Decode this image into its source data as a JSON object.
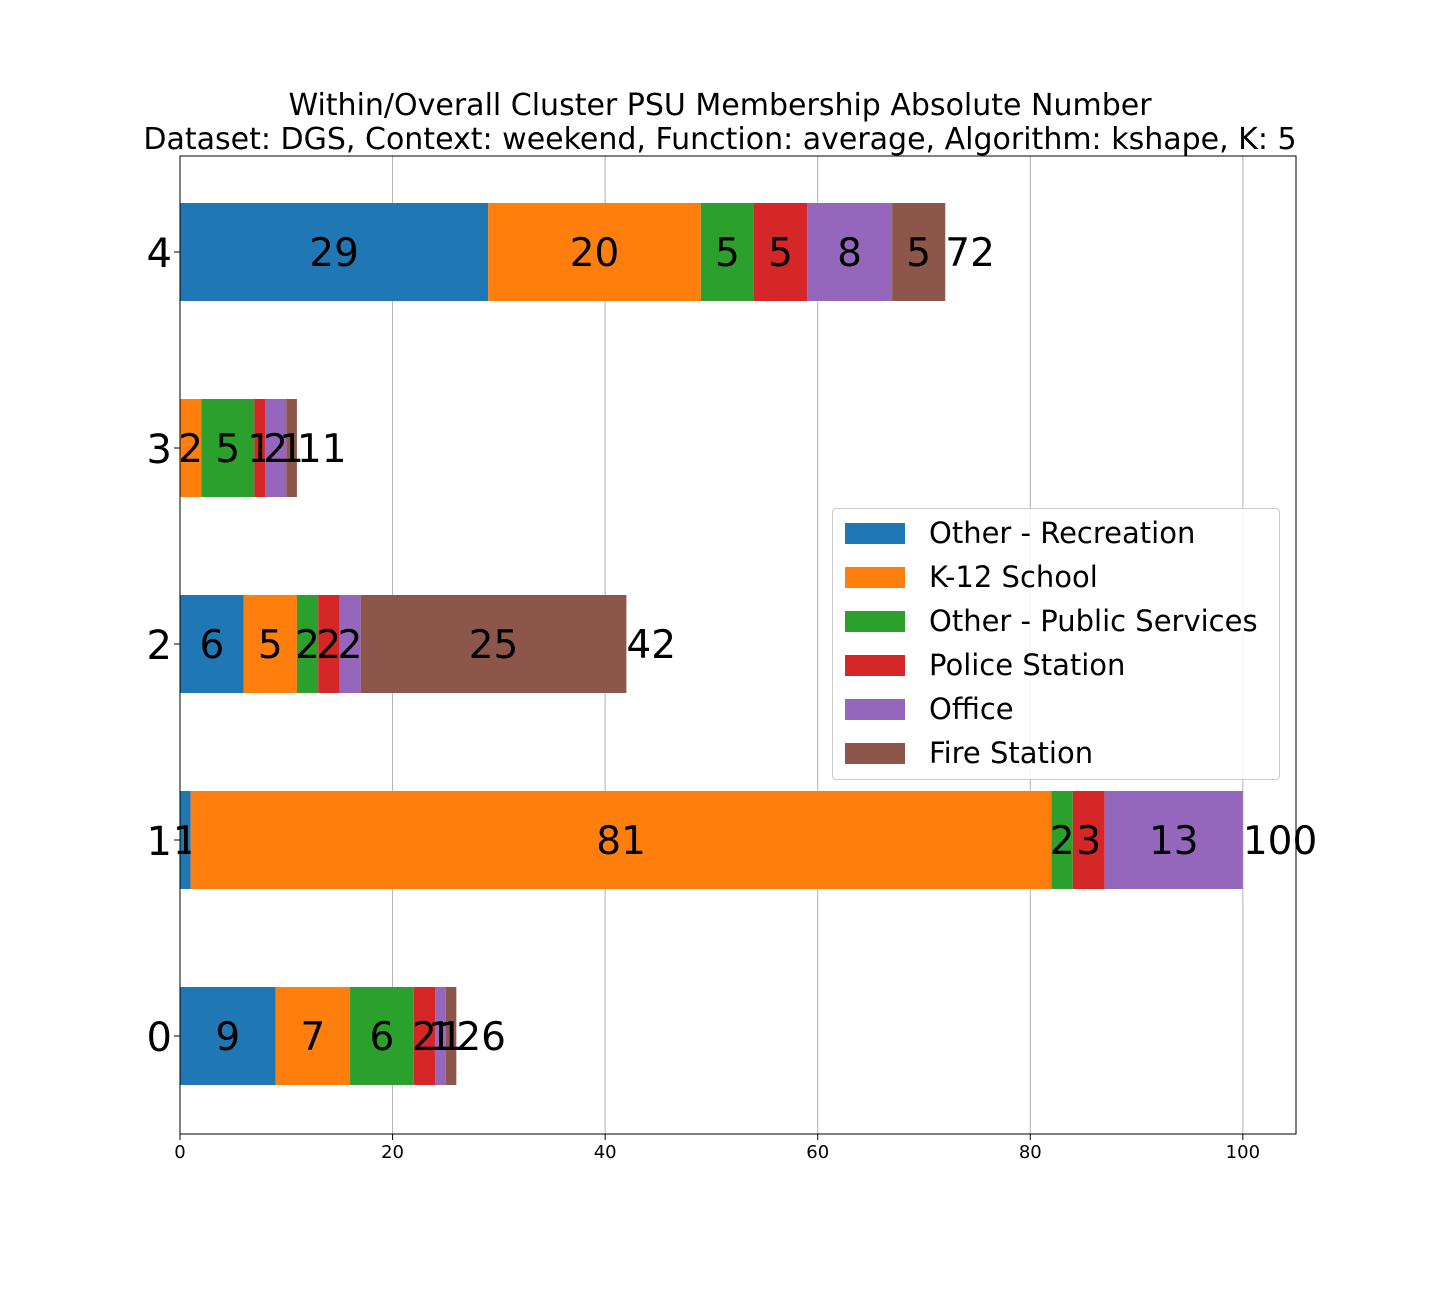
{
  "chart_data": {
    "type": "bar",
    "orientation": "horizontal",
    "stacked": true,
    "title": "Within/Overall Cluster PSU Membership Absolute Number",
    "subtitle": "Dataset: DGS, Context: weekend, Function: average, Algorithm: kshape, K: 5",
    "xlabel": "",
    "ylabel": "",
    "xlim": [
      0,
      105
    ],
    "x_ticks": [
      "0",
      "20",
      "40",
      "60",
      "80",
      "100"
    ],
    "grid": "vertical",
    "legend_position": "center-right",
    "categories": [
      "0",
      "1",
      "2",
      "3",
      "4"
    ],
    "series": [
      {
        "name": "Other - Recreation",
        "color": "#1f77b4",
        "values": [
          9,
          1,
          6,
          0,
          29
        ],
        "labels": [
          "9",
          "1",
          "6",
          "",
          "29"
        ]
      },
      {
        "name": "K-12 School",
        "color": "#ff7f0e",
        "values": [
          7,
          81,
          5,
          2,
          20
        ],
        "labels": [
          "7",
          "81",
          "5",
          "2",
          "20"
        ]
      },
      {
        "name": "Other - Public Services",
        "color": "#2ca02c",
        "values": [
          6,
          2,
          2,
          5,
          5
        ],
        "labels": [
          "6",
          "2",
          "2",
          "5",
          "5"
        ]
      },
      {
        "name": "Police Station",
        "color": "#d62728",
        "values": [
          2,
          3,
          2,
          1,
          5
        ],
        "labels": [
          "2",
          "3",
          "2",
          "1",
          "5"
        ]
      },
      {
        "name": "Office",
        "color": "#9467bd",
        "values": [
          1,
          13,
          2,
          2,
          8
        ],
        "labels": [
          "1",
          "13",
          "2",
          "2",
          "8"
        ]
      },
      {
        "name": "Fire Station",
        "color": "#8c564b",
        "values": [
          1,
          0,
          25,
          1,
          5
        ],
        "labels": [
          "1",
          "",
          "25",
          "1",
          "5"
        ]
      }
    ],
    "totals": [
      "26",
      "100",
      "42",
      "11",
      "72"
    ]
  }
}
